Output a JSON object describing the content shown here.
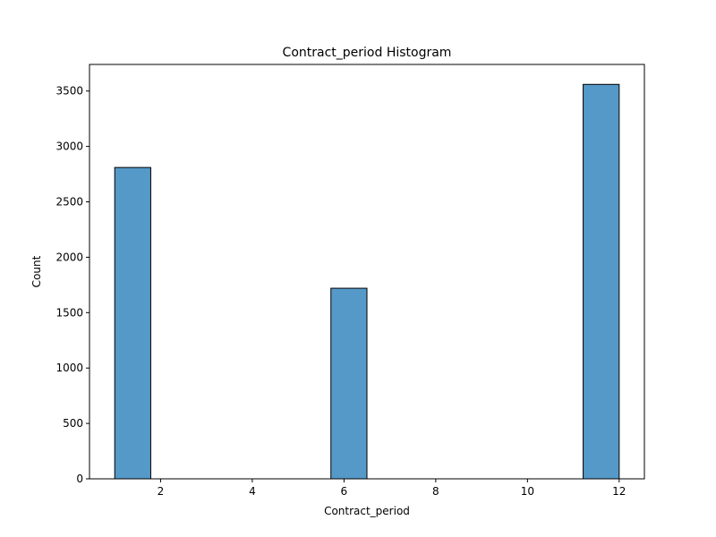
{
  "chart_data": {
    "type": "bar",
    "title": "Contract_period Histogram",
    "xlabel": "Contract_period",
    "ylabel": "Count",
    "xlim": [
      0.45,
      12.55
    ],
    "ylim": [
      0,
      3740
    ],
    "xticks": [
      2,
      4,
      6,
      8,
      10,
      12
    ],
    "yticks": [
      0,
      500,
      1000,
      1500,
      2000,
      2500,
      3000,
      3500
    ],
    "bar_color": "#5599c8",
    "edge_color": "#000000",
    "grid": false,
    "bins": [
      {
        "x0": 1.0,
        "x1": 1.7857,
        "count": 2810
      },
      {
        "x0": 1.7857,
        "x1": 2.5714,
        "count": 0
      },
      {
        "x0": 2.5714,
        "x1": 3.3571,
        "count": 0
      },
      {
        "x0": 3.3571,
        "x1": 4.1429,
        "count": 0
      },
      {
        "x0": 4.1429,
        "x1": 4.9286,
        "count": 0
      },
      {
        "x0": 4.9286,
        "x1": 5.7143,
        "count": 0
      },
      {
        "x0": 5.7143,
        "x1": 6.5,
        "count": 1720
      },
      {
        "x0": 6.5,
        "x1": 7.2857,
        "count": 0
      },
      {
        "x0": 7.2857,
        "x1": 8.0714,
        "count": 0
      },
      {
        "x0": 8.0714,
        "x1": 8.8571,
        "count": 0
      },
      {
        "x0": 8.8571,
        "x1": 9.6429,
        "count": 0
      },
      {
        "x0": 9.6429,
        "x1": 10.4286,
        "count": 0
      },
      {
        "x0": 10.4286,
        "x1": 11.2143,
        "count": 0
      },
      {
        "x0": 11.2143,
        "x1": 12.0,
        "count": 3560
      }
    ]
  }
}
